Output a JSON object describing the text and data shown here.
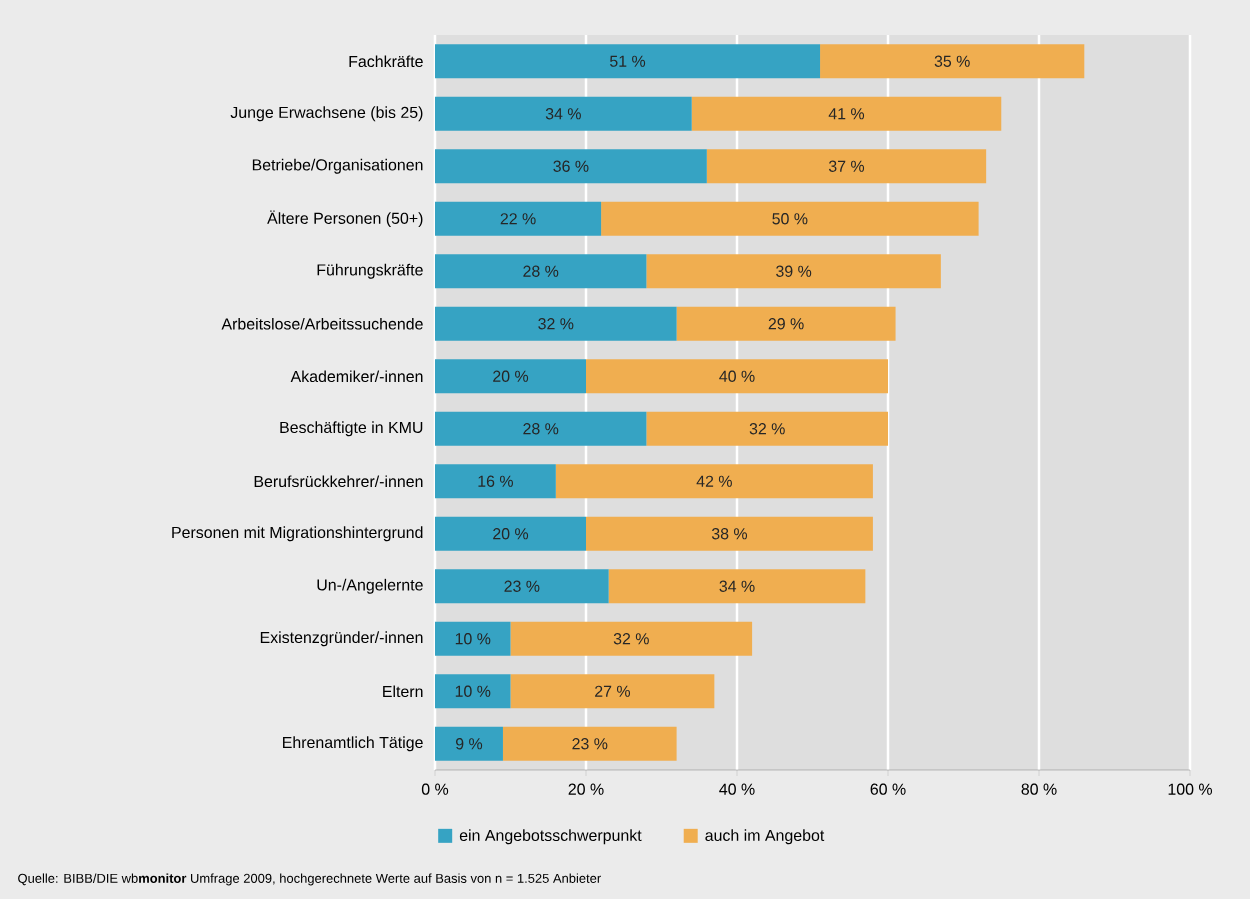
{
  "chart_data": {
    "type": "bar",
    "orientation": "horizontal",
    "stacked": true,
    "categories": [
      "Fachkräfte",
      "Junge Erwachsene (bis 25)",
      "Betriebe/Organisationen",
      "Ältere Personen (50+)",
      "Führungskräfte",
      "Arbeitslose/Arbeitssuchende",
      "Akademiker/-innen",
      "Beschäftigte in KMU",
      "Berufsrückkehrer/-innen",
      "Personen mit Migrationshintergrund",
      "Un-/Angelernte",
      "Existenzgründer/-innen",
      "Eltern",
      "Ehrenamtlich Tätige"
    ],
    "series": [
      {
        "name": "ein Angebotsschwerpunkt",
        "color": "#36a3c3",
        "values": [
          51,
          34,
          36,
          22,
          28,
          32,
          20,
          28,
          16,
          20,
          23,
          10,
          10,
          9
        ],
        "value_labels": [
          "51 %",
          "34 %",
          "36 %",
          "22 %",
          "28 %",
          "32 %",
          "20 %",
          "28 %",
          "16 %",
          "20 %",
          "23 %",
          "10 %",
          "10 %",
          "9 %"
        ]
      },
      {
        "name": "auch im Angebot",
        "color": "#f0ae50",
        "values": [
          35,
          41,
          37,
          50,
          39,
          29,
          40,
          32,
          42,
          38,
          34,
          32,
          27,
          23
        ],
        "value_labels": [
          "35 %",
          "41 %",
          "37 %",
          "50 %",
          "39 %",
          "29 %",
          "40 %",
          "32 %",
          "42 %",
          "38 %",
          "34 %",
          "32 %",
          "27 %",
          "23 %"
        ]
      }
    ],
    "xlim": [
      0,
      100
    ],
    "xticks": [
      {
        "value": 0,
        "label": "0 %"
      },
      {
        "value": 20,
        "label": "20 %"
      },
      {
        "value": 40,
        "label": "40 %"
      },
      {
        "value": 60,
        "label": "60 %"
      },
      {
        "value": 80,
        "label": "80 %"
      },
      {
        "value": 100,
        "label": "100 %"
      }
    ],
    "grid": "x",
    "legend": "bottom",
    "annotations": [
      "Quelle: BIBB/DIE wb**monitor** Umfrage 2009, hochgerechnete Werte auf Basis von n = 1.525 Anbieter"
    ]
  }
}
